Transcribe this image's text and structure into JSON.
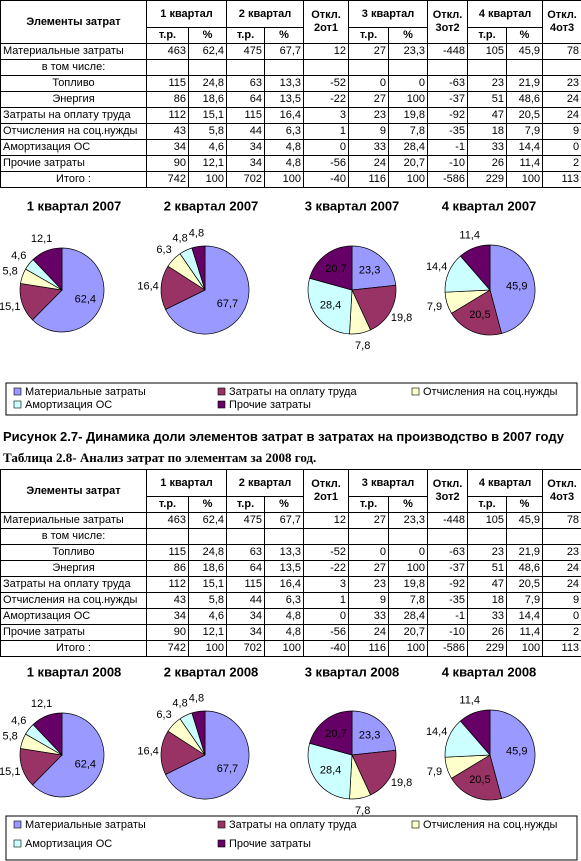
{
  "table1": {
    "header": {
      "row1": [
        "Элементы затрат",
        "1 квартал",
        "2 квартал",
        "Откл. 2от1",
        "3 квартал",
        "Откл. 3от2",
        "4 квартал",
        "Откл. 4от3"
      ],
      "row2": [
        "т.р.",
        "%",
        "т.р.",
        "%",
        "т.р.",
        "%",
        "т.р.",
        "%"
      ]
    },
    "rows": [
      [
        "Материальные затраты",
        "463",
        "62,4",
        "475",
        "67,7",
        "12",
        "27",
        "23,3",
        "-448",
        "105",
        "45,9",
        "78"
      ],
      [
        "в том числе:"
      ],
      [
        "Топливо",
        "115",
        "24,8",
        "63",
        "13,3",
        "-52",
        "0",
        "0",
        "-63",
        "23",
        "21,9",
        "23"
      ],
      [
        "Энергия",
        "86",
        "18,6",
        "64",
        "13,5",
        "-22",
        "27",
        "100",
        "-37",
        "51",
        "48,6",
        "24"
      ],
      [
        "Затраты на оплату труда",
        "112",
        "15,1",
        "115",
        "16,4",
        "3",
        "23",
        "19,8",
        "-92",
        "47",
        "20,5",
        "24"
      ],
      [
        "Отчисления на соц.нужды",
        "43",
        "5,8",
        "44",
        "6,3",
        "1",
        "9",
        "7,8",
        "-35",
        "18",
        "7,9",
        "9"
      ],
      [
        "Амортизация ОС",
        "34",
        "4,6",
        "34",
        "4,8",
        "0",
        "33",
        "28,4",
        "-1",
        "33",
        "14,4",
        "0"
      ],
      [
        "Прочие затраты",
        "90",
        "12,1",
        "34",
        "4,8",
        "-56",
        "24",
        "20,7",
        "-10",
        "26",
        "11,4",
        "2"
      ],
      [
        "Итого :",
        "742",
        "100",
        "702",
        "100",
        "-40",
        "116",
        "100",
        "-586",
        "229",
        "100",
        "113"
      ]
    ]
  },
  "figure1": {
    "legend": [
      {
        "name": "Материальные затраты",
        "color": "#9999ff"
      },
      {
        "name": "Затраты на оплату труда",
        "color": "#993366"
      },
      {
        "name": "Отчисления на соц.нужды",
        "color": "#ffffcc"
      },
      {
        "name": "Амортизация ОС",
        "color": "#ccffff"
      },
      {
        "name": "Прочие затраты",
        "color": "#660066"
      }
    ],
    "pies": [
      {
        "type": "pie",
        "title": "1 квартал 2007",
        "values": [
          62.4,
          15.1,
          5.8,
          4.6,
          12.1
        ],
        "value_labels": [
          "62,4",
          "15,1",
          "5,8",
          "4,6",
          "12,1"
        ]
      },
      {
        "type": "pie",
        "title": "2 квартал 2007",
        "values": [
          67.7,
          16.4,
          6.3,
          4.8,
          4.8
        ],
        "value_labels": [
          "67,7",
          "16,4",
          "6,3",
          "4,8",
          "4,8"
        ]
      },
      {
        "type": "pie",
        "title": "3 квартал 2007",
        "values": [
          23.3,
          19.8,
          7.8,
          28.4,
          20.7
        ],
        "value_labels": [
          "23,3",
          "19,8",
          "7,8",
          "28,4",
          "20,7"
        ]
      },
      {
        "type": "pie",
        "title": "4 квартал 2007",
        "values": [
          45.9,
          20.5,
          7.9,
          14.4,
          11.4
        ],
        "value_labels": [
          "45,9",
          "20,5",
          "7,9",
          "14,4",
          "11,4"
        ]
      }
    ]
  },
  "caption1": "Рисунок 2.7- Динамика доли элементов затрат в затратах на производство в 2007 году",
  "table_caption2": "Таблица 2.8- Анализ затрат по элементам за 2008 год.",
  "table2": {
    "header": {
      "row1": [
        "Элементы затрат",
        "1 квартал",
        "2 квартал",
        "Откл. 2от1",
        "3 квартал",
        "Откл. 3от2",
        "4 квартал",
        "Откл. 4от3"
      ],
      "row2": [
        "т.р.",
        "%",
        "т.р.",
        "%",
        "т.р.",
        "%",
        "т.р.",
        "%"
      ]
    },
    "rows": [
      [
        "Материальные затраты",
        "463",
        "62,4",
        "475",
        "67,7",
        "12",
        "27",
        "23,3",
        "-448",
        "105",
        "45,9",
        "78"
      ],
      [
        "в том числе:"
      ],
      [
        "Топливо",
        "115",
        "24,8",
        "63",
        "13,3",
        "-52",
        "0",
        "0",
        "-63",
        "23",
        "21,9",
        "23"
      ],
      [
        "Энергия",
        "86",
        "18,6",
        "64",
        "13,5",
        "-22",
        "27",
        "100",
        "-37",
        "51",
        "48,6",
        "24"
      ],
      [
        "Затраты на оплату труда",
        "112",
        "15,1",
        "115",
        "16,4",
        "3",
        "23",
        "19,8",
        "-92",
        "47",
        "20,5",
        "24"
      ],
      [
        "Отчисления на соц.нужды",
        "43",
        "5,8",
        "44",
        "6,3",
        "1",
        "9",
        "7,8",
        "-35",
        "18",
        "7,9",
        "9"
      ],
      [
        "Амортизация ОС",
        "34",
        "4,6",
        "34",
        "4,8",
        "0",
        "33",
        "28,4",
        "-1",
        "33",
        "14,4",
        "0"
      ],
      [
        "Прочие затраты",
        "90",
        "12,1",
        "34",
        "4,8",
        "-56",
        "24",
        "20,7",
        "-10",
        "26",
        "11,4",
        "2"
      ],
      [
        "Итого :",
        "742",
        "100",
        "702",
        "100",
        "-40",
        "116",
        "100",
        "-586",
        "229",
        "100",
        "113"
      ]
    ]
  },
  "figure2": {
    "legend": [
      {
        "name": "Материальные затраты",
        "color": "#9999ff"
      },
      {
        "name": "Затраты на оплату труда",
        "color": "#993366"
      },
      {
        "name": "Отчисления на соц.нужды",
        "color": "#ffffcc"
      },
      {
        "name": "Амортизация ОС",
        "color": "#ccffff"
      },
      {
        "name": "Прочие затраты",
        "color": "#660066"
      }
    ],
    "pies": [
      {
        "type": "pie",
        "title": "1 квартал 2008",
        "values": [
          62.4,
          15.1,
          5.8,
          4.6,
          12.1
        ],
        "value_labels": [
          "62,4",
          "15,1",
          "5,8",
          "4,6",
          "12,1"
        ]
      },
      {
        "type": "pie",
        "title": "2 квартал 2008",
        "values": [
          67.7,
          16.4,
          6.3,
          4.8,
          4.8
        ],
        "value_labels": [
          "67,7",
          "16,4",
          "6,3",
          "4,8",
          "4,8"
        ]
      },
      {
        "type": "pie",
        "title": "3 квартал 2008",
        "values": [
          23.3,
          19.8,
          7.8,
          28.4,
          20.7
        ],
        "value_labels": [
          "23,3",
          "19,8",
          "7,8",
          "28,4",
          "20,7"
        ]
      },
      {
        "type": "pie",
        "title": "4 квартал 2008",
        "values": [
          45.9,
          20.5,
          7.9,
          14.4,
          11.4
        ],
        "value_labels": [
          "45,9",
          "20,5",
          "7,9",
          "14,4",
          "11,4"
        ]
      }
    ]
  }
}
